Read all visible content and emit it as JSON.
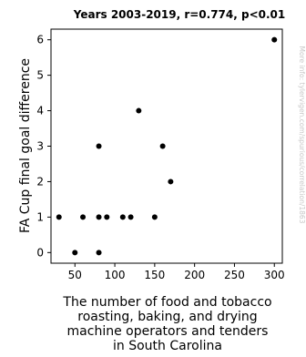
{
  "chart_data": {
    "type": "scatter",
    "title": "Years 2003-2019, r=0.774, p<0.01",
    "xlabel_lines": [
      "The number of food and tobacco",
      "roasting, baking, and drying",
      "machine operators and tenders",
      "in South Carolina"
    ],
    "ylabel": "FA Cup final goal difference",
    "watermark": "More info: tylervigen.com/spurious/correlation/1863",
    "xlim": [
      20,
      310
    ],
    "ylim": [
      -0.3,
      6.3
    ],
    "x_ticks": [
      50,
      100,
      150,
      200,
      250,
      300
    ],
    "y_ticks": [
      0,
      1,
      2,
      3,
      4,
      5,
      6
    ],
    "grid": false,
    "marker_color": "#000000",
    "points": [
      {
        "x": 30,
        "y": 1
      },
      {
        "x": 50,
        "y": 0
      },
      {
        "x": 60,
        "y": 1
      },
      {
        "x": 80,
        "y": 3
      },
      {
        "x": 80,
        "y": 1
      },
      {
        "x": 80,
        "y": 0
      },
      {
        "x": 90,
        "y": 1
      },
      {
        "x": 110,
        "y": 1
      },
      {
        "x": 120,
        "y": 1
      },
      {
        "x": 130,
        "y": 4
      },
      {
        "x": 150,
        "y": 1
      },
      {
        "x": 160,
        "y": 3
      },
      {
        "x": 170,
        "y": 2
      },
      {
        "x": 300,
        "y": 6
      }
    ]
  }
}
